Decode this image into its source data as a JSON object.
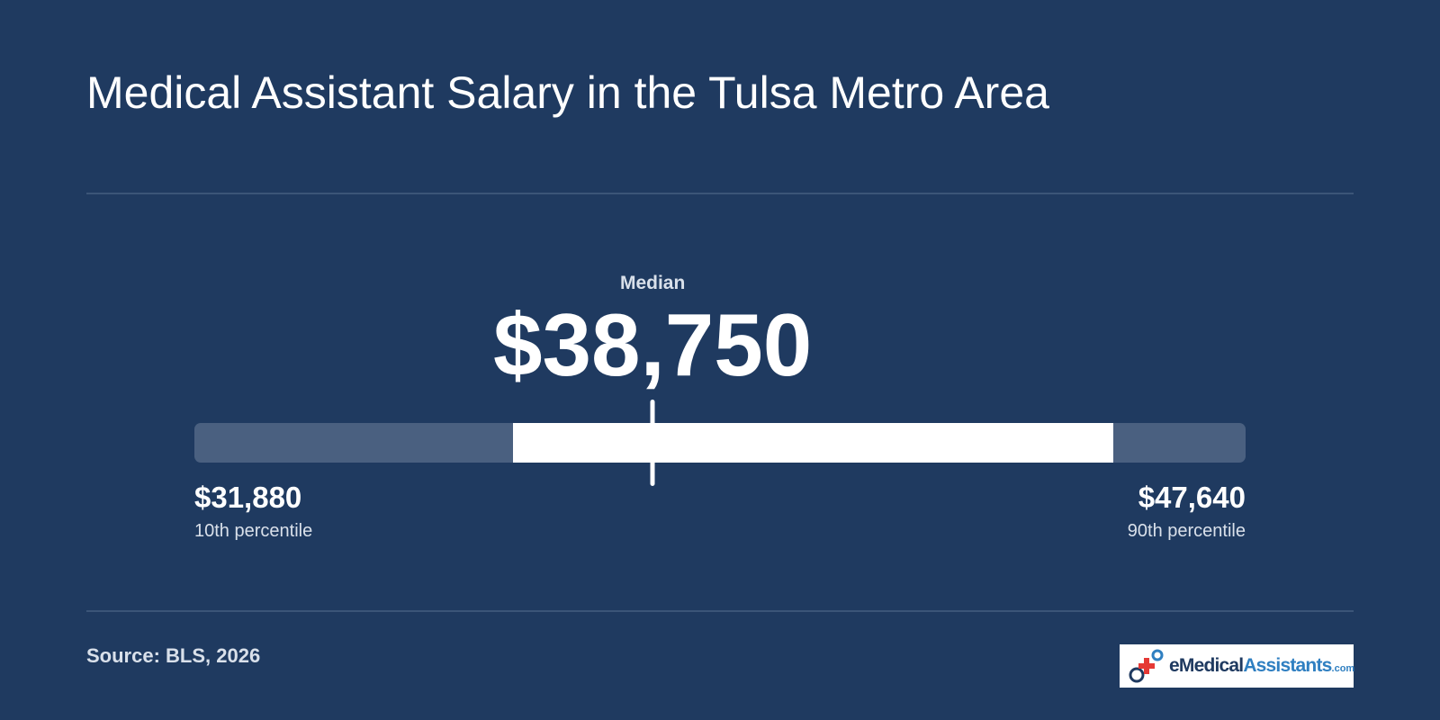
{
  "header": {
    "title": "Medical Assistant Salary in the Tulsa Metro Area"
  },
  "chart_data": {
    "type": "range",
    "scale": [
      31880,
      47640
    ],
    "median": {
      "label": "Median",
      "value": 38750,
      "display": "$38,750"
    },
    "p10": {
      "label": "10th percentile",
      "value": 31880,
      "display": "$31,880"
    },
    "p90": {
      "label": "90th percentile",
      "value": 47640,
      "display": "$47,640"
    },
    "highlight_range": [
      36650,
      45650
    ]
  },
  "footer": {
    "source": "Source: BLS, 2026",
    "logo": {
      "text_main": "eMedical",
      "text_accent": "Assistants",
      "text_domain": ".com"
    }
  },
  "colors": {
    "background": "#1f3a60",
    "track": "#4a6080",
    "fill": "#ffffff",
    "logo_accent": "#2f7fc1",
    "logo_cross": "#e53935"
  }
}
